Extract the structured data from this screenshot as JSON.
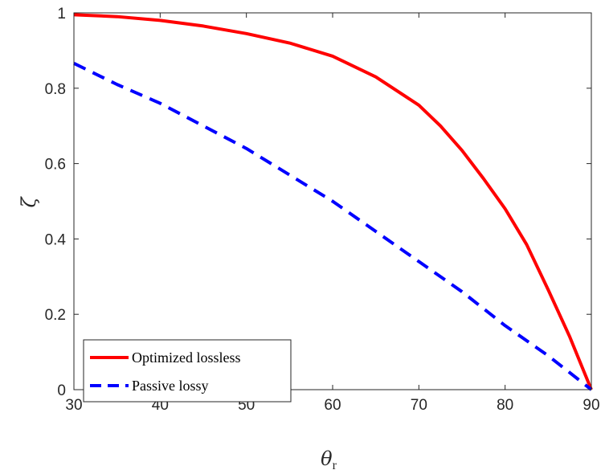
{
  "chart_data": {
    "type": "line",
    "title": "",
    "xlabel": "θ",
    "xlabel_sub": "r",
    "ylabel": "ζ",
    "xlim": [
      30,
      90
    ],
    "ylim": [
      0,
      1
    ],
    "xticks": [
      30,
      40,
      50,
      60,
      70,
      80,
      90
    ],
    "yticks": [
      0,
      0.2,
      0.4,
      0.6,
      0.8,
      1
    ],
    "ytick_labels": [
      "0",
      "0.2",
      "0.4",
      "0.6",
      "0.8",
      "1"
    ],
    "grid": false,
    "legend_position": "bottom-left",
    "series": [
      {
        "name": "Optimized lossless",
        "color": "#ff0000",
        "style": "solid",
        "x": [
          30,
          35,
          40,
          45,
          50,
          55,
          60,
          65,
          70,
          72.5,
          75,
          77.5,
          80,
          82.5,
          85,
          87.5,
          90
        ],
        "y": [
          0.995,
          0.99,
          0.98,
          0.965,
          0.945,
          0.92,
          0.885,
          0.83,
          0.755,
          0.7,
          0.635,
          0.56,
          0.48,
          0.385,
          0.265,
          0.14,
          0.0
        ]
      },
      {
        "name": "Passive lossy",
        "color": "#0000ff",
        "style": "dashed",
        "x": [
          30,
          35,
          40,
          45,
          50,
          55,
          60,
          65,
          70,
          75,
          80,
          85,
          90
        ],
        "y": [
          0.866,
          0.81,
          0.76,
          0.7,
          0.64,
          0.57,
          0.5,
          0.42,
          0.34,
          0.26,
          0.17,
          0.09,
          0.0
        ]
      }
    ]
  }
}
